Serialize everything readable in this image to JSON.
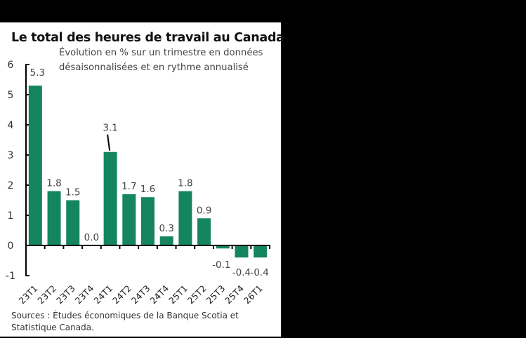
{
  "chart_data": {
    "type": "bar",
    "title": "Le total des heures de travail au Canada",
    "subtitle": "Évolution en % sur un trimestre en données désaisonnalisées et en rythme annualisé",
    "subtitle_lines": [
      "Évolution en % sur un trimestre en données",
      "désaisonnalisées et en rythme annualisé"
    ],
    "categories": [
      "23T1",
      "23T2",
      "23T3",
      "23T4",
      "24T1",
      "24T2",
      "24T3",
      "24T4",
      "25T1",
      "25T2",
      "25T3",
      "25T4",
      "26T1"
    ],
    "values": [
      5.3,
      1.8,
      1.5,
      0.0,
      3.1,
      1.7,
      1.6,
      0.3,
      1.8,
      0.9,
      -0.1,
      -0.4,
      -0.4
    ],
    "data_labels": [
      "5.3",
      "1.8",
      "1.5",
      "0.0",
      "3.1",
      "1.7",
      "1.6",
      "0.3",
      "1.8",
      "0.9",
      "-0.1",
      "-0.4",
      "-0.4"
    ],
    "xlabel": "",
    "ylabel": "",
    "ylim": [
      -1,
      6
    ],
    "yticks": [
      -1,
      0,
      1,
      2,
      3,
      4,
      5,
      6
    ],
    "grid": false,
    "legend": null,
    "bar_color": "#14855F",
    "annotations": [
      {
        "target": "24T1",
        "text": "3.1",
        "leader_line": true
      }
    ]
  },
  "source": {
    "line1": "Sources : Études économiques de la Banque Scotia et",
    "line2": "Statistique Canada."
  }
}
